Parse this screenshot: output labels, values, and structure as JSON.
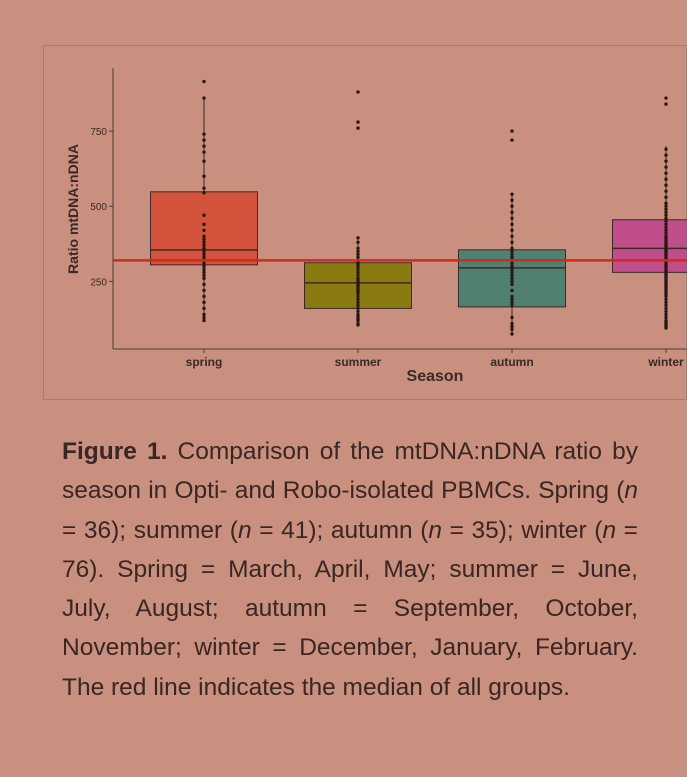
{
  "chart_data": {
    "type": "box",
    "xlabel": "Season",
    "ylabel": "Ratio mtDNA:nDNA",
    "categories": [
      "spring",
      "summer",
      "autumn",
      "winter"
    ],
    "ylim": [
      25,
      960
    ],
    "yticks": [
      250,
      500,
      750
    ],
    "boxes": [
      {
        "category": "spring",
        "q1": 305,
        "median": 355,
        "q3": 548,
        "whisker_low": 125,
        "whisker_high": 865,
        "color": "#d4533c"
      },
      {
        "category": "summer",
        "q1": 160,
        "median": 245,
        "q3": 312,
        "whisker_low": 105,
        "whisker_high": 395,
        "color": "#8a7a10"
      },
      {
        "category": "autumn",
        "q1": 165,
        "median": 295,
        "q3": 355,
        "whisker_low": 70,
        "whisker_high": 540,
        "color": "#4f8070"
      },
      {
        "category": "winter",
        "q1": 280,
        "median": 360,
        "q3": 455,
        "whisker_low": 100,
        "whisker_high": 700,
        "color": "#c04e8a"
      }
    ],
    "points": [
      [
        915,
        860,
        740,
        720,
        700,
        680,
        650,
        600,
        560,
        545,
        470,
        440,
        420,
        400,
        390,
        380,
        370,
        360,
        350,
        340,
        330,
        320,
        310,
        300,
        290,
        280,
        270,
        260,
        240,
        220,
        200,
        180,
        160,
        140,
        130,
        120
      ],
      [
        880,
        780,
        760,
        395,
        380,
        360,
        350,
        340,
        330,
        320,
        315,
        310,
        305,
        300,
        290,
        280,
        270,
        260,
        255,
        250,
        245,
        240,
        235,
        230,
        225,
        220,
        215,
        210,
        200,
        190,
        180,
        170,
        160,
        150,
        140,
        135,
        130,
        125,
        120,
        110,
        105
      ],
      [
        750,
        720,
        540,
        520,
        500,
        480,
        460,
        440,
        420,
        400,
        380,
        360,
        350,
        340,
        330,
        320,
        310,
        300,
        295,
        290,
        280,
        270,
        260,
        250,
        240,
        220,
        200,
        190,
        180,
        170,
        130,
        110,
        100,
        90,
        75
      ],
      [
        860,
        840,
        690,
        670,
        650,
        630,
        610,
        590,
        570,
        550,
        530,
        510,
        500,
        490,
        480,
        470,
        460,
        450,
        440,
        430,
        420,
        410,
        400,
        395,
        390,
        385,
        380,
        375,
        370,
        365,
        360,
        355,
        350,
        345,
        340,
        335,
        330,
        325,
        320,
        315,
        310,
        305,
        300,
        295,
        290,
        285,
        280,
        275,
        270,
        265,
        260,
        255,
        250,
        245,
        240,
        235,
        230,
        225,
        220,
        215,
        210,
        205,
        200,
        190,
        180,
        170,
        160,
        150,
        140,
        130,
        120,
        115,
        110,
        105,
        100,
        95
      ]
    ],
    "reference_line": {
      "value": 320,
      "color": "#d12a1e"
    },
    "grid": false,
    "legend": "none"
  },
  "caption": {
    "label": "Figure 1.",
    "p1": " Comparison of the mtDNA:nDNA ratio by season in Opti- and Robo-isolated PBMCs. Spring (",
    "n": "n",
    "p2": " = 36); summer (",
    "p3": " = 41); autumn (",
    "p4": " = 35); winter (",
    "p5": " = 76). Spring = March, April, May; summer = June, July, August; autumn = September, October, November; winter = December, January, February. The red line indicates the median of all groups."
  }
}
